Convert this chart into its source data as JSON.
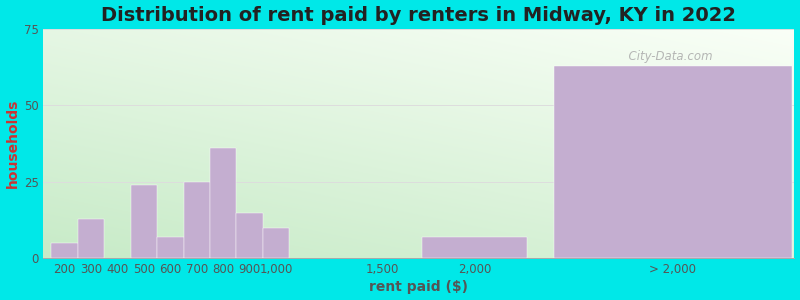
{
  "title": "Distribution of rent paid by renters in Midway, KY in 2022",
  "xlabel": "rent paid ($)",
  "ylabel": "households",
  "bar_color": "#c4aed0",
  "background_outer": "#00e8e8",
  "ylim": [
    0,
    75
  ],
  "yticks": [
    0,
    25,
    50,
    75
  ],
  "categories": [
    "200",
    "300",
    "400",
    "500",
    "600",
    "700",
    "800",
    "900",
    "1,000",
    "1,500",
    "2,000",
    "> 2,000"
  ],
  "values": [
    5,
    13,
    0,
    24,
    7,
    25,
    36,
    15,
    10,
    0,
    7,
    63
  ],
  "title_fontsize": 14,
  "axis_label_fontsize": 10,
  "tick_fontsize": 8.5,
  "watermark": "City-Data.com"
}
